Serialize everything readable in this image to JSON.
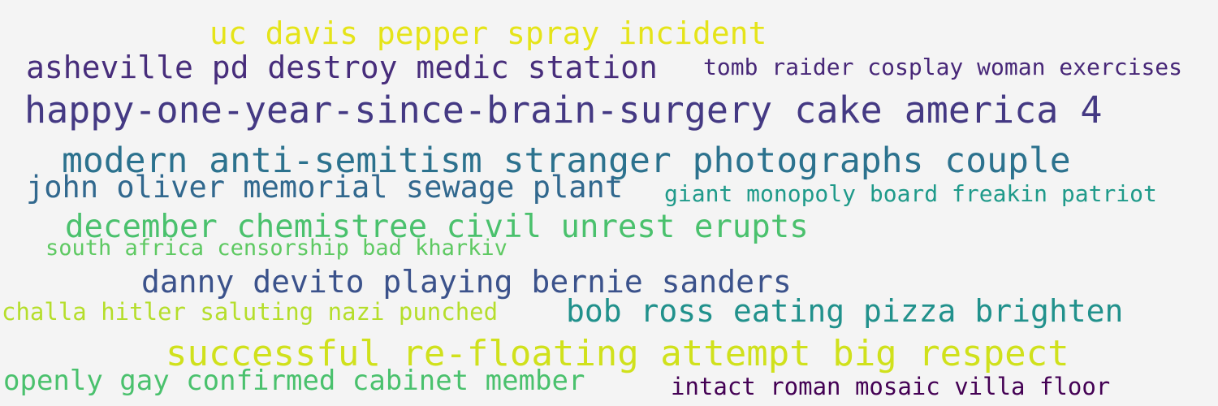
{
  "word_cloud": {
    "phrases": [
      {
        "text": "uc davis pepper spray incident",
        "color": "#e5e419"
      },
      {
        "text": "asheville pd destroy medic station",
        "color": "#472d7b"
      },
      {
        "text": "tomb raider cosplay woman exercises",
        "color": "#482878"
      },
      {
        "text": "happy-one-year-since-brain-surgery cake america 4",
        "color": "#443983"
      },
      {
        "text": "modern anti-semitism stranger photographs couple",
        "color": "#2c728e"
      },
      {
        "text": "john oliver memorial sewage plant",
        "color": "#31688e"
      },
      {
        "text": "giant monopoly board freakin patriot",
        "color": "#1f9a8a"
      },
      {
        "text": "december chemistree civil unrest erupts",
        "color": "#4ac16d"
      },
      {
        "text": "south africa censorship bad kharkiv",
        "color": "#5ec962"
      },
      {
        "text": "danny devito playing bernie sanders",
        "color": "#3b528b"
      },
      {
        "text": "challa hitler saluting nazi punched",
        "color": "#b5de2b"
      },
      {
        "text": "bob ross eating pizza brighten",
        "color": "#21918c"
      },
      {
        "text": "successful re-floating attempt big respect",
        "color": "#d0e11c"
      },
      {
        "text": "openly gay confirmed cabinet member",
        "color": "#4ac16d"
      },
      {
        "text": "intact roman mosaic villa floor",
        "color": "#440154"
      }
    ]
  }
}
